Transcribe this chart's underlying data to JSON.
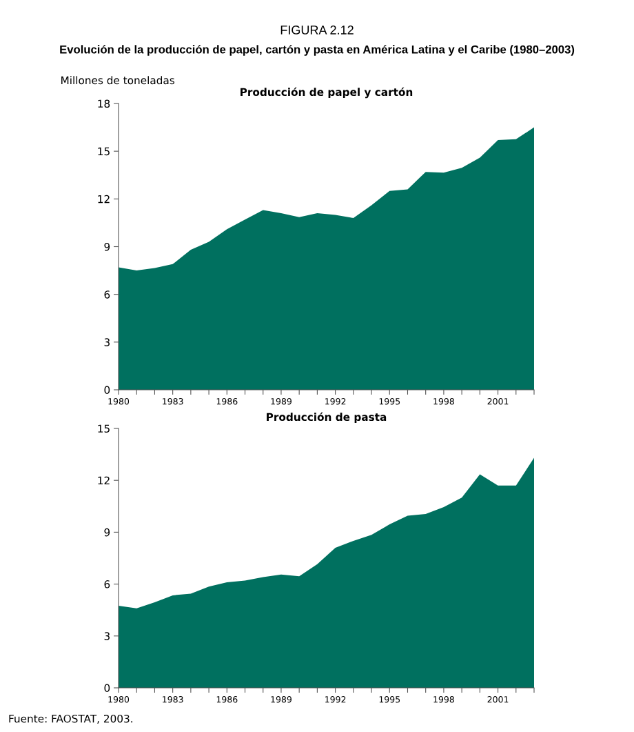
{
  "chart_data": [
    {
      "type": "area",
      "title": "Producción de papel y cartón",
      "ylabel": "Millones de toneladas",
      "annotations": [
        "FIGURA 2.12",
        "Evolución de la producción de papel, cartón y pasta en América Latina y el Caribe (1980–2003)"
      ],
      "x": [
        1980,
        1981,
        1982,
        1983,
        1984,
        1985,
        1986,
        1987,
        1988,
        1989,
        1990,
        1991,
        1992,
        1993,
        1994,
        1995,
        1996,
        1997,
        1998,
        1999,
        2000,
        2001,
        2002,
        2003
      ],
      "series": [
        {
          "color": "#00705f",
          "values": [
            7.7,
            7.5,
            7.65,
            7.9,
            8.8,
            9.3,
            10.1,
            10.7,
            11.3,
            11.1,
            10.85,
            11.1,
            11.0,
            10.8,
            11.6,
            12.5,
            12.6,
            13.7,
            13.65,
            13.95,
            14.6,
            15.7,
            15.75,
            16.5
          ]
        }
      ],
      "xlim": [
        1980,
        2003
      ],
      "xticks": [
        1980,
        {
          "value": 1981,
          "label": null
        },
        {
          "value": 1982,
          "label": null
        },
        1983,
        {
          "value": 1984,
          "label": null
        },
        {
          "value": 1985,
          "label": null
        },
        1986,
        {
          "value": 1987,
          "label": null
        },
        {
          "value": 1988,
          "label": null
        },
        1989,
        {
          "value": 1990,
          "label": null
        },
        {
          "value": 1991,
          "label": null
        },
        1992,
        {
          "value": 1993,
          "label": null
        },
        {
          "value": 1994,
          "label": null
        },
        1995,
        {
          "value": 1996,
          "label": null
        },
        {
          "value": 1997,
          "label": null
        },
        1998,
        {
          "value": 1999,
          "label": null
        },
        {
          "value": 2000,
          "label": null
        },
        2001,
        {
          "value": 2002,
          "label": null
        },
        {
          "value": 2003,
          "label": null
        }
      ],
      "ylim": [
        0,
        18
      ],
      "yticks": [
        0,
        3,
        6,
        9,
        12,
        15,
        18
      ],
      "grid": false,
      "legend": false
    },
    {
      "type": "area",
      "title": "Producción de pasta",
      "annotations": [
        "Fuente: FAOSTAT, 2003."
      ],
      "x": [
        1980,
        1981,
        1982,
        1983,
        1984,
        1985,
        1986,
        1987,
        1988,
        1989,
        1990,
        1991,
        1992,
        1993,
        1994,
        1995,
        1996,
        1997,
        1998,
        1999,
        2000,
        2001,
        2002,
        2003
      ],
      "series": [
        {
          "color": "#00705f",
          "values": [
            4.75,
            4.6,
            4.95,
            5.35,
            5.45,
            5.85,
            6.1,
            6.2,
            6.4,
            6.55,
            6.45,
            7.15,
            8.1,
            8.5,
            8.85,
            9.45,
            9.95,
            10.05,
            10.45,
            11.0,
            12.35,
            11.7,
            11.7,
            13.3
          ]
        }
      ],
      "xlim": [
        1980,
        2003
      ],
      "xticks": [
        1980,
        {
          "value": 1981,
          "label": null
        },
        {
          "value": 1982,
          "label": null
        },
        1983,
        {
          "value": 1984,
          "label": null
        },
        {
          "value": 1985,
          "label": null
        },
        1986,
        {
          "value": 1987,
          "label": null
        },
        {
          "value": 1988,
          "label": null
        },
        1989,
        {
          "value": 1990,
          "label": null
        },
        {
          "value": 1991,
          "label": null
        },
        1992,
        {
          "value": 1993,
          "label": null
        },
        {
          "value": 1994,
          "label": null
        },
        1995,
        {
          "value": 1996,
          "label": null
        },
        {
          "value": 1997,
          "label": null
        },
        1998,
        {
          "value": 1999,
          "label": null
        },
        {
          "value": 2000,
          "label": null
        },
        2001,
        {
          "value": 2002,
          "label": null
        },
        {
          "value": 2003,
          "label": null
        }
      ],
      "ylim": [
        0,
        15
      ],
      "yticks": [
        0,
        3,
        6,
        9,
        12,
        15
      ],
      "grid": false,
      "legend": false
    }
  ]
}
